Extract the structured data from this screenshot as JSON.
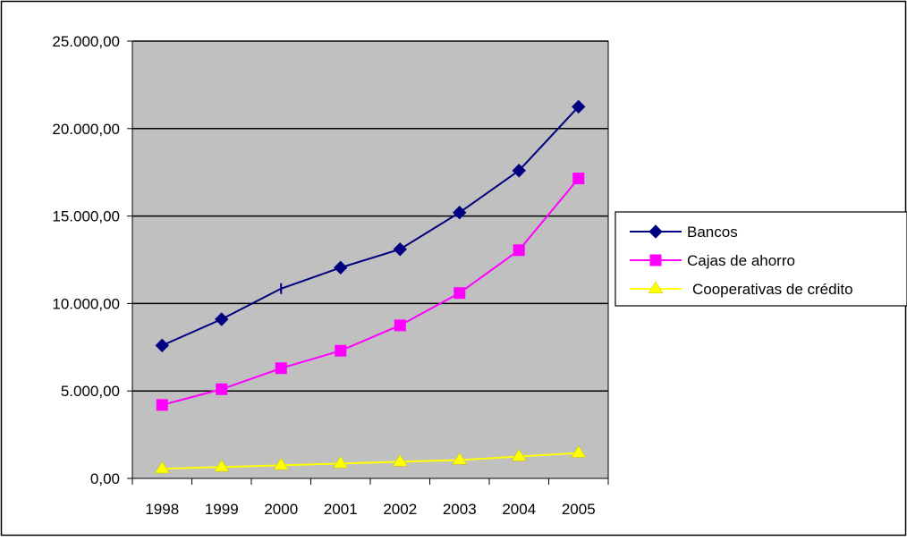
{
  "chart_data": {
    "type": "line",
    "title": "",
    "xlabel": "",
    "ylabel": "",
    "categories": [
      "1998",
      "1999",
      "2000",
      "2001",
      "2002",
      "2003",
      "2004",
      "2005"
    ],
    "ylim": [
      0,
      25000
    ],
    "yticks": [
      0,
      5000,
      10000,
      15000,
      20000,
      25000
    ],
    "ytick_labels": [
      "0,00",
      "5.000,00",
      "10.000,00",
      "15.000,00",
      "20.000,00",
      "25.000,00"
    ],
    "grid": true,
    "plot_background": "#c0c0c0",
    "legend_position": "right",
    "series": [
      {
        "name": "Bancos",
        "values": [
          7600,
          9100,
          10850,
          12050,
          13100,
          15200,
          17600,
          21250
        ],
        "color": "#000080",
        "marker": "diamond"
      },
      {
        "name": "Cajas de ahorro",
        "values": [
          4200,
          5100,
          6300,
          7300,
          8750,
          10600,
          13050,
          17150
        ],
        "color": "#ff00ff",
        "marker": "square"
      },
      {
        "name": "Cooperativas de crédito",
        "values": [
          550,
          650,
          750,
          850,
          950,
          1050,
          1250,
          1450
        ],
        "color": "#ffff00",
        "marker": "triangle"
      }
    ]
  }
}
